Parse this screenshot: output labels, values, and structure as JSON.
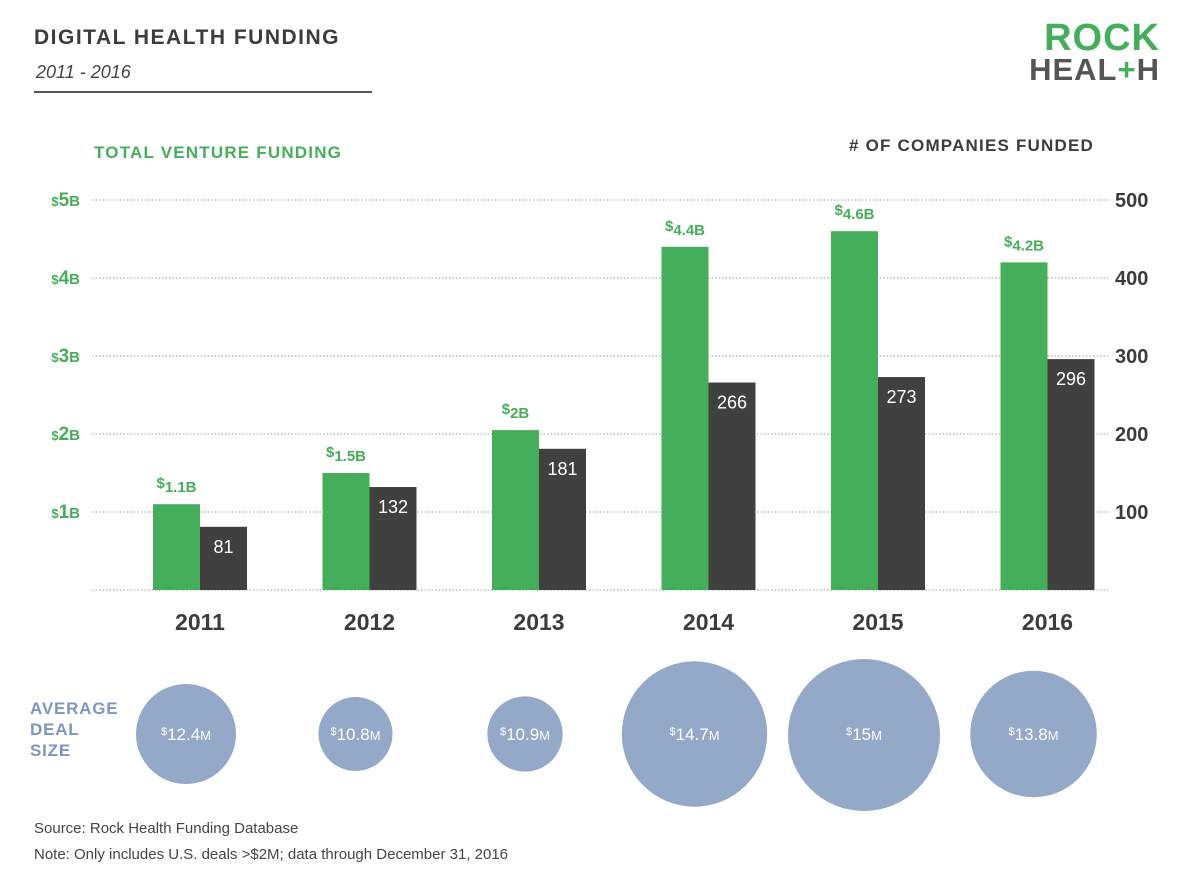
{
  "header": {
    "title": "DIGITAL HEALTH FUNDING",
    "subtitle": "2011 - 2016"
  },
  "logo": {
    "line1": "ROCK",
    "line2_pre": "HEAL",
    "line2_plus": "+",
    "line2_post": "H"
  },
  "colors": {
    "funding": "#45ae5a",
    "companies": "#404040",
    "deal_bubble": "#94a8c8",
    "deal_label": "#7f95c0",
    "grid": "#9a9a9a",
    "axis_text": "#4a4a4a"
  },
  "chart_data": {
    "type": "bar",
    "categories": [
      "2011",
      "2012",
      "2013",
      "2014",
      "2015",
      "2016"
    ],
    "left_axis": {
      "label": "TOTAL VENTURE FUNDING",
      "unit": "B",
      "ticks": [
        {
          "value": 1,
          "prefix": "$",
          "num": "1",
          "suffix": "B"
        },
        {
          "value": 2,
          "prefix": "$",
          "num": "2",
          "suffix": "B"
        },
        {
          "value": 3,
          "prefix": "$",
          "num": "3",
          "suffix": "B"
        },
        {
          "value": 4,
          "prefix": "$",
          "num": "4",
          "suffix": "B"
        },
        {
          "value": 5,
          "prefix": "$",
          "num": "5",
          "suffix": "B"
        }
      ],
      "ylim": [
        0,
        5
      ]
    },
    "right_axis": {
      "label": "# OF COMPANIES FUNDED",
      "ticks": [
        100,
        200,
        300,
        400,
        500
      ],
      "ylim": [
        0,
        500
      ]
    },
    "series": [
      {
        "key": "funding",
        "axis": "left",
        "values": [
          1.1,
          1.5,
          2.05,
          4.4,
          4.6,
          4.2
        ],
        "labels": [
          {
            "prefix": "$",
            "text": "1.1B"
          },
          {
            "prefix": "$",
            "text": "1.5B"
          },
          {
            "prefix": "$",
            "text": "2B"
          },
          {
            "prefix": "$",
            "text": "4.4B"
          },
          {
            "prefix": "$",
            "text": "4.6B"
          },
          {
            "prefix": "$",
            "text": "4.2B"
          }
        ]
      },
      {
        "key": "companies",
        "axis": "right",
        "values": [
          81,
          132,
          181,
          266,
          273,
          296
        ],
        "labels": [
          "81",
          "132",
          "181",
          "266",
          "273",
          "296"
        ]
      }
    ],
    "average_deal_size": {
      "label_lines": [
        "AVERAGE",
        "DEAL",
        "SIZE"
      ],
      "values": [
        12.4,
        10.8,
        10.9,
        14.7,
        15,
        13.8
      ],
      "labels": [
        {
          "prefix": "$",
          "num": "12.4",
          "suffix": "M"
        },
        {
          "prefix": "$",
          "num": "10.8",
          "suffix": "M"
        },
        {
          "prefix": "$",
          "num": "10.9",
          "suffix": "M"
        },
        {
          "prefix": "$",
          "num": "14.7",
          "suffix": "M"
        },
        {
          "prefix": "$",
          "num": "15",
          "suffix": "M"
        },
        {
          "prefix": "$",
          "num": "13.8",
          "suffix": "M"
        }
      ]
    },
    "grid": true
  },
  "footer": {
    "source": "Source: Rock Health Funding Database",
    "note": "Note: Only includes U.S. deals >$2M; data through December 31, 2016"
  }
}
